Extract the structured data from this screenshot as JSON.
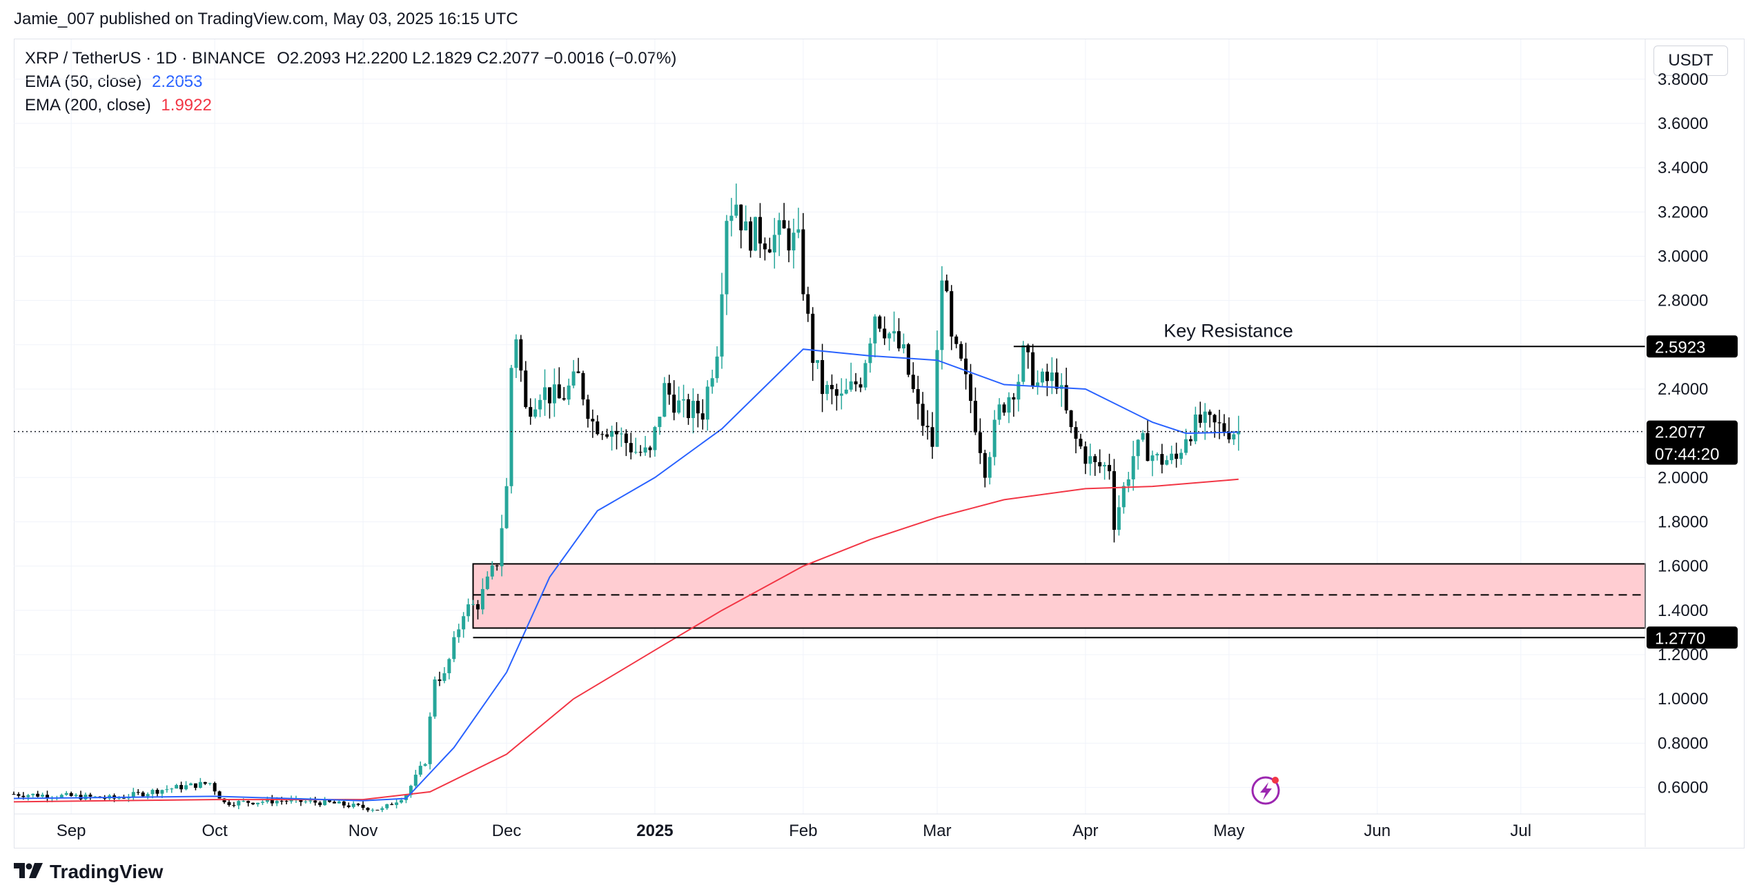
{
  "header": {
    "published": "Jamie_007 published on TradingView.com, May 03, 2025 16:15 UTC"
  },
  "legend": {
    "symbol": "XRP / TetherUS · 1D · BINANCE",
    "ohlc": "O2.2093  H2.2200  L2.1829  C2.2077  −0.0016 (−0.07%)",
    "ema50_label": "EMA (50, close)",
    "ema50_value": "2.2053",
    "ema200_label": "EMA (200, close)",
    "ema200_value": "1.9922"
  },
  "axis": {
    "unit": "USDT"
  },
  "brand": {
    "name": "TradingView",
    "logo": "tradingview-logo-icon"
  },
  "colors": {
    "up": "#26a69a",
    "down": "#000000",
    "ema50": "#2962ff",
    "ema200": "#f23645",
    "zone_fill": "#ffcdd2",
    "price_tag": "#000000"
  },
  "annotations": {
    "key_resistance_label": "Key Resistance",
    "resistance_tag": "2.5923",
    "last_price_tag": "2.2077",
    "countdown_tag": "07:44:20",
    "support_tag": "1.2770"
  },
  "chart_data": {
    "type": "candlestick",
    "title": "XRP / TetherUS · 1D · BINANCE",
    "ylim": [
      0.48,
      3.98
    ],
    "y_ticks": [
      "3.8000",
      "3.6000",
      "3.4000",
      "3.2000",
      "3.0000",
      "2.8000",
      "2.6000",
      "2.4000",
      "2.2000",
      "2.0000",
      "1.8000",
      "1.6000",
      "1.4000",
      "1.2000",
      "1.0000",
      "0.8000",
      "0.6000"
    ],
    "x_ticks": [
      {
        "label": "Sep",
        "bold": false
      },
      {
        "label": "Oct",
        "bold": false
      },
      {
        "label": "Nov",
        "bold": false
      },
      {
        "label": "Dec",
        "bold": false
      },
      {
        "label": "2025",
        "bold": true
      },
      {
        "label": "Feb",
        "bold": false
      },
      {
        "label": "Mar",
        "bold": false
      },
      {
        "label": "Apr",
        "bold": false
      },
      {
        "label": "May",
        "bold": false
      },
      {
        "label": "Jun",
        "bold": false
      },
      {
        "label": "Jul",
        "bold": false
      }
    ],
    "price_path_keypoints": [
      [
        "2024-08-20",
        0.57
      ],
      [
        "2024-09-01",
        0.56
      ],
      [
        "2024-09-10",
        0.55
      ],
      [
        "2024-09-20",
        0.59
      ],
      [
        "2024-09-30",
        0.62
      ],
      [
        "2024-10-03",
        0.53
      ],
      [
        "2024-10-15",
        0.54
      ],
      [
        "2024-10-25",
        0.53
      ],
      [
        "2024-11-01",
        0.51
      ],
      [
        "2024-11-05",
        0.5
      ],
      [
        "2024-11-10",
        0.57
      ],
      [
        "2024-11-14",
        0.72
      ],
      [
        "2024-11-16",
        1.1
      ],
      [
        "2024-11-18",
        1.1
      ],
      [
        "2024-11-22",
        1.4
      ],
      [
        "2024-11-25",
        1.43
      ],
      [
        "2024-11-29",
        1.62
      ],
      [
        "2024-12-01",
        1.95
      ],
      [
        "2024-12-02",
        2.5
      ],
      [
        "2024-12-03",
        2.65
      ],
      [
        "2024-12-05",
        2.3
      ],
      [
        "2024-12-08",
        2.4
      ],
      [
        "2024-12-12",
        2.35
      ],
      [
        "2024-12-16",
        2.45
      ],
      [
        "2024-12-19",
        2.25
      ],
      [
        "2024-12-23",
        2.22
      ],
      [
        "2024-12-28",
        2.12
      ],
      [
        "2024-12-31",
        2.1
      ],
      [
        "2025-01-03",
        2.4
      ],
      [
        "2025-01-07",
        2.3
      ],
      [
        "2025-01-11",
        2.3
      ],
      [
        "2025-01-14",
        2.6
      ],
      [
        "2025-01-16",
        3.2
      ],
      [
        "2025-01-18",
        3.25
      ],
      [
        "2025-01-20",
        3.1
      ],
      [
        "2025-01-23",
        3.1
      ],
      [
        "2025-01-25",
        3.08
      ],
      [
        "2025-01-28",
        3.1
      ],
      [
        "2025-01-31",
        3.05
      ],
      [
        "2025-02-02",
        2.7
      ],
      [
        "2025-02-03",
        2.55
      ],
      [
        "2025-02-05",
        2.4
      ],
      [
        "2025-02-09",
        2.35
      ],
      [
        "2025-02-13",
        2.45
      ],
      [
        "2025-02-16",
        2.75
      ],
      [
        "2025-02-19",
        2.65
      ],
      [
        "2025-02-22",
        2.55
      ],
      [
        "2025-02-25",
        2.3
      ],
      [
        "2025-02-28",
        2.15
      ],
      [
        "2025-03-02",
        2.95
      ],
      [
        "2025-03-04",
        2.6
      ],
      [
        "2025-03-06",
        2.5
      ],
      [
        "2025-03-08",
        2.35
      ],
      [
        "2025-03-11",
        2.05
      ],
      [
        "2025-03-14",
        2.3
      ],
      [
        "2025-03-18",
        2.45
      ],
      [
        "2025-03-19",
        2.55
      ],
      [
        "2025-03-22",
        2.42
      ],
      [
        "2025-03-26",
        2.45
      ],
      [
        "2025-03-29",
        2.2
      ],
      [
        "2025-04-01",
        2.1
      ],
      [
        "2025-04-03",
        2.05
      ],
      [
        "2025-04-06",
        2.05
      ],
      [
        "2025-04-07",
        1.8
      ],
      [
        "2025-04-09",
        1.95
      ],
      [
        "2025-04-11",
        2.1
      ],
      [
        "2025-04-13",
        2.15
      ],
      [
        "2025-04-16",
        2.08
      ],
      [
        "2025-04-20",
        2.08
      ],
      [
        "2025-04-22",
        2.2
      ],
      [
        "2025-04-25",
        2.25
      ],
      [
        "2025-04-28",
        2.23
      ],
      [
        "2025-05-03",
        2.2077
      ]
    ],
    "ema50_series": [
      [
        "2024-08-20",
        0.55
      ],
      [
        "2024-10-01",
        0.56
      ],
      [
        "2024-11-01",
        0.54
      ],
      [
        "2024-11-10",
        0.55
      ],
      [
        "2024-11-20",
        0.78
      ],
      [
        "2024-12-01",
        1.12
      ],
      [
        "2024-12-10",
        1.55
      ],
      [
        "2024-12-20",
        1.85
      ],
      [
        "2025-01-01",
        2.0
      ],
      [
        "2025-01-15",
        2.22
      ],
      [
        "2025-02-01",
        2.58
      ],
      [
        "2025-02-15",
        2.55
      ],
      [
        "2025-03-01",
        2.53
      ],
      [
        "2025-03-15",
        2.42
      ],
      [
        "2025-04-01",
        2.4
      ],
      [
        "2025-04-15",
        2.25
      ],
      [
        "2025-04-22",
        2.2
      ],
      [
        "2025-05-03",
        2.2053
      ]
    ],
    "ema200_series": [
      [
        "2024-08-20",
        0.535
      ],
      [
        "2024-10-01",
        0.545
      ],
      [
        "2024-11-01",
        0.545
      ],
      [
        "2024-11-15",
        0.58
      ],
      [
        "2024-12-01",
        0.75
      ],
      [
        "2024-12-15",
        1.0
      ],
      [
        "2025-01-01",
        1.22
      ],
      [
        "2025-01-15",
        1.4
      ],
      [
        "2025-02-01",
        1.6
      ],
      [
        "2025-02-15",
        1.72
      ],
      [
        "2025-03-01",
        1.82
      ],
      [
        "2025-03-15",
        1.9
      ],
      [
        "2025-04-01",
        1.95
      ],
      [
        "2025-04-15",
        1.96
      ],
      [
        "2025-05-03",
        1.9922
      ]
    ],
    "resistance_level": 2.5923,
    "support_level": 1.277,
    "zone": {
      "top": 1.61,
      "mid": 1.47,
      "bottom": 1.32
    },
    "last_price": 2.2077
  }
}
